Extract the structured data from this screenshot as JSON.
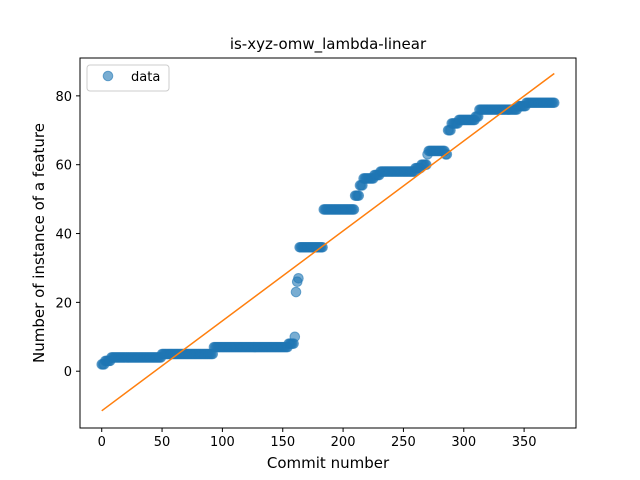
{
  "chart_data": {
    "type": "scatter",
    "title": "is-xyz-omw_lambda-linear",
    "xlabel": "Commit number",
    "ylabel": "Number of instance of a feature",
    "xlim": [
      -18,
      393
    ],
    "ylim": [
      -16.5,
      91
    ],
    "xticks": [
      0,
      50,
      100,
      150,
      200,
      250,
      300,
      350
    ],
    "yticks": [
      0,
      20,
      40,
      60,
      80
    ],
    "grid": false,
    "legend": {
      "position": "top-left",
      "entries": [
        "data"
      ]
    },
    "colors": {
      "scatter": "#1f77b4",
      "fit_line": "#ff7f0e"
    },
    "step_segments": [
      [
        0,
        2,
        2
      ],
      [
        3,
        7,
        3
      ],
      [
        8,
        39,
        4
      ],
      [
        40,
        49,
        4
      ],
      [
        50,
        92,
        5
      ],
      [
        93,
        154,
        7
      ],
      [
        155,
        159,
        8
      ],
      [
        160,
        160,
        10
      ],
      [
        161,
        161,
        23
      ],
      [
        162,
        162,
        26
      ],
      [
        163,
        163,
        27
      ],
      [
        164,
        183,
        36
      ],
      [
        184,
        209,
        47
      ],
      [
        210,
        213,
        51
      ],
      [
        214,
        216,
        54
      ],
      [
        217,
        225,
        56
      ],
      [
        226,
        230,
        57
      ],
      [
        231,
        259,
        58
      ],
      [
        260,
        264,
        59
      ],
      [
        265,
        269,
        60
      ],
      [
        270,
        270,
        63
      ],
      [
        271,
        284,
        64
      ],
      [
        285,
        286,
        63
      ],
      [
        287,
        289,
        70
      ],
      [
        290,
        295,
        72
      ],
      [
        296,
        309,
        73
      ],
      [
        310,
        312,
        74
      ],
      [
        313,
        344,
        76
      ],
      [
        345,
        351,
        77
      ],
      [
        352,
        375,
        78
      ]
    ],
    "series": [
      {
        "name": "data",
        "type": "scatter"
      },
      {
        "type": "line",
        "x": [
          0,
          375
        ],
        "y": [
          -11.5,
          86.5
        ]
      }
    ]
  }
}
